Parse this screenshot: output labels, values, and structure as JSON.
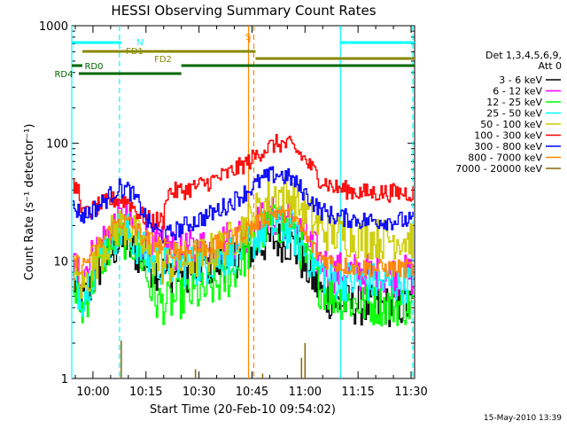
{
  "chart_data": {
    "type": "line",
    "title": "HESSI Observing Summary Count Rates",
    "xlabel": "Start Time (20-Feb-10 09:54:02)",
    "ylabel": "Count Rate (s⁻¹ detector⁻¹)",
    "y_scale": "log",
    "ylim": [
      1,
      1000
    ],
    "xlim_minutes": [
      0,
      97
    ],
    "x_ticks": [
      "10:00",
      "10:15",
      "10:30",
      "10:45",
      "11:00",
      "11:15",
      "11:30"
    ],
    "y_ticks": [
      "1",
      "10",
      "100",
      "1000"
    ],
    "legend_header": [
      "Det 1,3,4,5,6,9,",
      "Att 0"
    ],
    "legend_position": "right",
    "footer_date": "15-May-2010 13:39",
    "series": [
      {
        "name": "3 - 6 keV",
        "color": "#000000",
        "points": [
          [
            0,
            7
          ],
          [
            3,
            4.5
          ],
          [
            8,
            9
          ],
          [
            13,
            14
          ],
          [
            16,
            13
          ],
          [
            19,
            11
          ],
          [
            22,
            9
          ],
          [
            26,
            8
          ],
          [
            32,
            8
          ],
          [
            38,
            9
          ],
          [
            44,
            10
          ],
          [
            50,
            12
          ],
          [
            54,
            14
          ],
          [
            58,
            15
          ],
          [
            62,
            14
          ],
          [
            65,
            10
          ],
          [
            68,
            7
          ],
          [
            70,
            5.5
          ],
          [
            74,
            4.5
          ],
          [
            78,
            4.3
          ],
          [
            82,
            4.2
          ],
          [
            86,
            4.1
          ],
          [
            97,
            4.1
          ]
        ]
      },
      {
        "name": "6 - 12 keV",
        "color": "#ff00ff",
        "points": [
          [
            0,
            9
          ],
          [
            3,
            8
          ],
          [
            8,
            14
          ],
          [
            13,
            22
          ],
          [
            16,
            21
          ],
          [
            19,
            17
          ],
          [
            22,
            14
          ],
          [
            26,
            13
          ],
          [
            32,
            12
          ],
          [
            38,
            13
          ],
          [
            44,
            15
          ],
          [
            50,
            18
          ],
          [
            54,
            22
          ],
          [
            58,
            24
          ],
          [
            62,
            22
          ],
          [
            65,
            17
          ],
          [
            68,
            13
          ],
          [
            70,
            10
          ],
          [
            74,
            8
          ],
          [
            78,
            8
          ],
          [
            82,
            7.8
          ],
          [
            86,
            7.5
          ],
          [
            97,
            7.5
          ]
        ]
      },
      {
        "name": "12 - 25 keV",
        "color": "#00ff00",
        "points": [
          [
            0,
            6
          ],
          [
            3,
            3.8
          ],
          [
            8,
            10
          ],
          [
            13,
            16
          ],
          [
            16,
            15
          ],
          [
            19,
            12
          ],
          [
            22,
            6
          ],
          [
            24,
            4.5
          ],
          [
            26,
            4.3
          ],
          [
            32,
            5
          ],
          [
            38,
            5.5
          ],
          [
            44,
            7
          ],
          [
            50,
            12
          ],
          [
            54,
            18
          ],
          [
            58,
            21
          ],
          [
            62,
            18
          ],
          [
            65,
            12
          ],
          [
            68,
            8
          ],
          [
            70,
            6
          ],
          [
            74,
            5
          ],
          [
            78,
            4.5
          ],
          [
            82,
            4.3
          ],
          [
            86,
            4.2
          ],
          [
            97,
            4.2
          ]
        ]
      },
      {
        "name": "25 - 50 keV",
        "color": "#00ffff",
        "points": [
          [
            0,
            7
          ],
          [
            3,
            5
          ],
          [
            8,
            12
          ],
          [
            13,
            18
          ],
          [
            16,
            17
          ],
          [
            19,
            13
          ],
          [
            22,
            10
          ],
          [
            26,
            9
          ],
          [
            32,
            9
          ],
          [
            38,
            9.5
          ],
          [
            44,
            11
          ],
          [
            50,
            14
          ],
          [
            54,
            18
          ],
          [
            58,
            20
          ],
          [
            62,
            18
          ],
          [
            65,
            13
          ],
          [
            68,
            10
          ],
          [
            70,
            8
          ],
          [
            74,
            7
          ],
          [
            78,
            6.8
          ],
          [
            82,
            6.6
          ],
          [
            86,
            6.5
          ],
          [
            97,
            6.5
          ]
        ]
      },
      {
        "name": "50 - 100 keV",
        "color": "#cccc00",
        "points": [
          [
            0,
            8
          ],
          [
            3,
            6
          ],
          [
            8,
            12
          ],
          [
            13,
            20
          ],
          [
            16,
            19
          ],
          [
            19,
            15
          ],
          [
            22,
            11
          ],
          [
            26,
            9
          ],
          [
            32,
            10
          ],
          [
            38,
            11
          ],
          [
            44,
            14
          ],
          [
            50,
            22
          ],
          [
            54,
            30
          ],
          [
            58,
            38
          ],
          [
            62,
            35
          ],
          [
            65,
            28
          ],
          [
            68,
            22
          ],
          [
            70,
            19
          ],
          [
            74,
            17
          ],
          [
            78,
            16
          ],
          [
            82,
            15.5
          ],
          [
            86,
            15.5
          ],
          [
            97,
            15.5
          ]
        ]
      },
      {
        "name": "100 - 300 keV",
        "color": "#ff0000",
        "points": [
          [
            0,
            42
          ],
          [
            2,
            40
          ],
          [
            3,
            24
          ],
          [
            8,
            30
          ],
          [
            13,
            34
          ],
          [
            16,
            32
          ],
          [
            19,
            25
          ],
          [
            22,
            22
          ],
          [
            26,
            22
          ],
          [
            26.5,
            38
          ],
          [
            32,
            40
          ],
          [
            38,
            46
          ],
          [
            44,
            55
          ],
          [
            50,
            70
          ],
          [
            54,
            88
          ],
          [
            58,
            100
          ],
          [
            62,
            95
          ],
          [
            65,
            78
          ],
          [
            68,
            60
          ],
          [
            70,
            50
          ],
          [
            74,
            42
          ],
          [
            78,
            40
          ],
          [
            82,
            38
          ],
          [
            86,
            38
          ],
          [
            97,
            38
          ]
        ]
      },
      {
        "name": "300 - 800 keV",
        "color": "#0000ff",
        "points": [
          [
            0,
            30
          ],
          [
            3,
            24
          ],
          [
            8,
            30
          ],
          [
            13,
            42
          ],
          [
            16,
            40
          ],
          [
            19,
            30
          ],
          [
            22,
            20
          ],
          [
            26,
            16
          ],
          [
            32,
            20
          ],
          [
            38,
            24
          ],
          [
            44,
            30
          ],
          [
            50,
            40
          ],
          [
            54,
            50
          ],
          [
            58,
            55
          ],
          [
            62,
            50
          ],
          [
            65,
            40
          ],
          [
            68,
            32
          ],
          [
            70,
            27
          ],
          [
            74,
            24
          ],
          [
            78,
            23
          ],
          [
            82,
            22
          ],
          [
            86,
            22
          ],
          [
            97,
            22
          ]
        ]
      },
      {
        "name": "800 - 7000 keV",
        "color": "#ff8800",
        "points": [
          [
            0,
            10
          ],
          [
            3,
            9
          ],
          [
            8,
            14
          ],
          [
            13,
            22
          ],
          [
            16,
            21
          ],
          [
            19,
            17
          ],
          [
            22,
            15
          ],
          [
            26,
            13
          ],
          [
            32,
            12
          ],
          [
            38,
            13
          ],
          [
            44,
            15
          ],
          [
            50,
            19
          ],
          [
            54,
            23
          ],
          [
            58,
            26
          ],
          [
            62,
            23
          ],
          [
            65,
            18
          ],
          [
            68,
            13
          ],
          [
            70,
            11
          ],
          [
            74,
            9.5
          ],
          [
            78,
            9
          ],
          [
            82,
            8.8
          ],
          [
            86,
            8.6
          ],
          [
            97,
            8.6
          ]
        ]
      },
      {
        "name": "7000 - 20000 keV",
        "color": "#886600",
        "points": []
      }
    ],
    "flag_bars": [
      {
        "label": "N",
        "color": "#00ffff",
        "row": 1,
        "segments": [
          [
            0,
            14
          ],
          [
            76,
            97
          ]
        ]
      },
      {
        "label": "S",
        "color": "#ff8800",
        "row": 0,
        "segments": [
          [
            50.2,
            50.8
          ]
        ]
      },
      {
        "label": "FD1",
        "color": "#888800",
        "row": 2,
        "segments": [
          [
            3,
            52
          ]
        ]
      },
      {
        "label": "FD2",
        "color": "#888800",
        "row": 3,
        "segments": [
          [
            52,
            97
          ]
        ]
      },
      {
        "label": "RD0",
        "color": "#006600",
        "row": 4,
        "segments": [
          [
            0,
            3
          ],
          [
            31,
            97
          ]
        ]
      },
      {
        "label": "RD4",
        "color": "#006600",
        "row": 5,
        "segments": [
          [
            2,
            31
          ]
        ]
      }
    ],
    "spikes_7000": [
      [
        14,
        2.1
      ],
      [
        66,
        2.0
      ],
      [
        65,
        1.5
      ],
      [
        35,
        1.2
      ],
      [
        54,
        1.1
      ]
    ],
    "vertical_lines": [
      {
        "x": 0,
        "color": "#00ffff",
        "style": "solid"
      },
      {
        "x": 13.5,
        "color": "#00ffff",
        "style": "dashed"
      },
      {
        "x": 50,
        "color": "#ff8800",
        "style": "solid"
      },
      {
        "x": 51.5,
        "color": "#ff8800",
        "style": "dashed"
      },
      {
        "x": 76,
        "color": "#00ffff",
        "style": "solid"
      },
      {
        "x": 96.5,
        "color": "#00ffff",
        "style": "dashed"
      }
    ]
  }
}
